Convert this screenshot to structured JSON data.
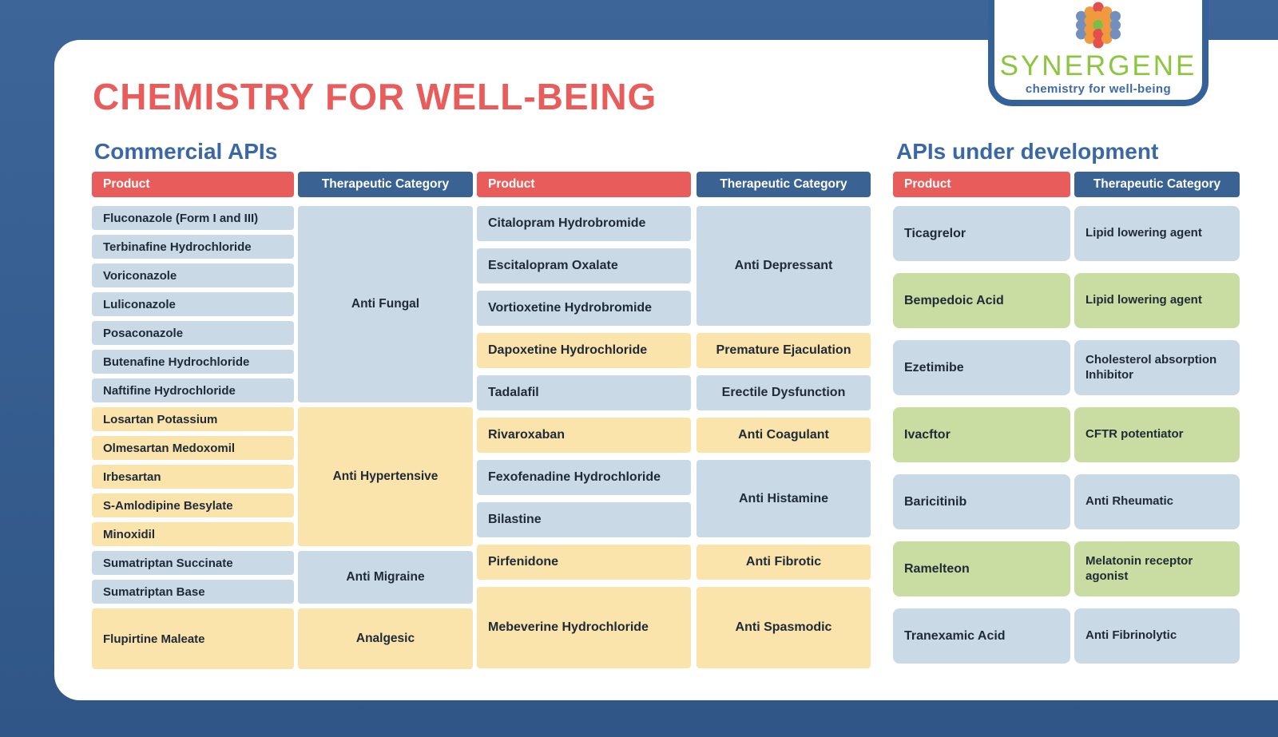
{
  "page": {
    "title": "CHEMISTRY FOR WELL-BEING"
  },
  "logo": {
    "brand": "SYNERGENE",
    "tagline": "chemistry for well-being",
    "dot_colors": {
      "red": "#E2504E",
      "orange": "#F0993F",
      "blue": "#7290BD",
      "green": "#7ABE45"
    }
  },
  "sections": {
    "commercial": {
      "heading": "Commercial APIs"
    },
    "development": {
      "heading": "APIs under development"
    }
  },
  "colors": {
    "red": "#E85D5B",
    "navy": "#3A6292",
    "cell_blue": "#C9D9E6",
    "cell_yellow": "#FBE3AC",
    "cell_green": "#C9DDA2",
    "bg_top": "#3D6598",
    "bg_bottom": "#2F5686",
    "heading": "#3A67A6",
    "brand_green": "#8CC63E",
    "tagline": "#3D6BA7",
    "badge_border": "#35619B",
    "text_dark": "#1E2A36"
  },
  "tables": [
    {
      "id": "commercial-apis-1",
      "columns": [
        "Product",
        "Therapeutic Category"
      ],
      "groups": [
        {
          "category": "Anti Fungal",
          "tone": "blue",
          "products": [
            "Fluconazole (Form I and III)",
            "Terbinafine Hydrochloride",
            "Voriconazole",
            "Luliconazole",
            "Posaconazole",
            "Butenafine Hydrochloride",
            "Naftifine Hydrochloride"
          ]
        },
        {
          "category": "Anti Hypertensive",
          "tone": "yellow",
          "products": [
            "Losartan Potassium",
            "Olmesartan Medoxomil",
            "Irbesartan",
            "S-Amlodipine Besylate",
            "Minoxidil"
          ]
        },
        {
          "category": "Anti Migraine",
          "tone": "blue",
          "products": [
            "Sumatriptan Succinate",
            "Sumatriptan Base"
          ]
        },
        {
          "category": "Analgesic",
          "tone": "yellow",
          "products": [
            "Flupirtine Maleate"
          ]
        }
      ]
    },
    {
      "id": "commercial-apis-2",
      "columns": [
        "Product",
        "Therapeutic Category"
      ],
      "groups": [
        {
          "category": "Anti Depressant",
          "tone": "blue",
          "products": [
            "Citalopram Hydrobromide",
            "Escitalopram Oxalate",
            "Vortioxetine Hydrobromide"
          ]
        },
        {
          "category": "Premature Ejaculation",
          "tone": "yellow",
          "products": [
            "Dapoxetine Hydrochloride"
          ]
        },
        {
          "category": "Erectile Dysfunction",
          "tone": "blue",
          "products": [
            "Tadalafil"
          ]
        },
        {
          "category": "Anti Coagulant",
          "tone": "yellow",
          "products": [
            "Rivaroxaban"
          ]
        },
        {
          "category": "Anti Histamine",
          "tone": "blue",
          "products": [
            "Fexofenadine Hydrochloride",
            "Bilastine"
          ]
        },
        {
          "category": "Anti Fibrotic",
          "tone": "yellow",
          "products": [
            "Pirfenidone"
          ]
        },
        {
          "category": "Anti Spasmodic",
          "tone": "yellow",
          "products": [
            "Mebeverine Hydrochloride"
          ]
        }
      ]
    },
    {
      "id": "apis-under-development",
      "columns": [
        "Product",
        "Therapeutic Category"
      ],
      "groups": [
        {
          "category": "Lipid lowering agent",
          "tone": "blue",
          "products": [
            "Ticagrelor"
          ]
        },
        {
          "category": "Lipid lowering agent",
          "tone": "green",
          "products": [
            "Bempedoic Acid"
          ]
        },
        {
          "category": "Cholesterol absorption Inhibitor",
          "tone": "blue",
          "products": [
            "Ezetimibe"
          ]
        },
        {
          "category": "CFTR potentiator",
          "tone": "green",
          "products": [
            "Ivacftor"
          ]
        },
        {
          "category": "Anti Rheumatic",
          "tone": "blue",
          "products": [
            "Baricitinib"
          ]
        },
        {
          "category": "Melatonin receptor agonist",
          "tone": "green",
          "products": [
            "Ramelteon"
          ]
        },
        {
          "category": "Anti Fibrinolytic",
          "tone": "blue",
          "products": [
            "Tranexamic Acid"
          ]
        }
      ]
    }
  ]
}
